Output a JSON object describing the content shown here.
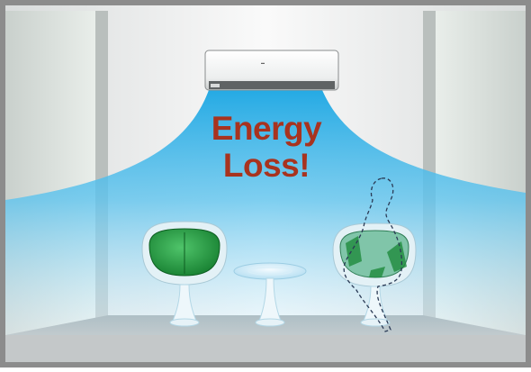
{
  "headline": {
    "line1": "Energy",
    "line2": "Loss!"
  },
  "icons": {
    "air_conditioner": "wall-air-conditioner-icon",
    "airflow": "cold-air-flow",
    "chair_occupied": "egg-chair-icon",
    "chair_empty": "egg-chair-icon",
    "table": "round-side-table-icon",
    "person": "dashed-person-outline-icon"
  },
  "colors": {
    "headline": "#a8331f",
    "airflow": "#3fb7e8",
    "chair_green": "#1f8a3a",
    "frame": "#8c8c8c"
  }
}
